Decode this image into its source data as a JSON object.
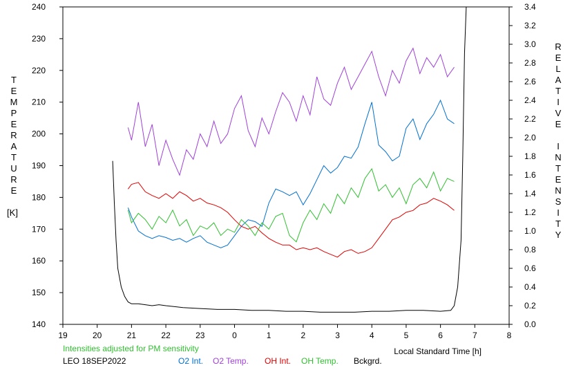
{
  "chart_data": {
    "type": "line",
    "xlabel": "Local Standard Time [h]",
    "ylabel": "TEMPERATURE",
    "ylabel_unit": "[K]",
    "y2label": "RELATIVE INTENSITY",
    "xlim": [
      19,
      32
    ],
    "ylim": [
      140,
      240
    ],
    "y2lim": [
      0.0,
      3.4
    ],
    "x_ticks": [
      19,
      20,
      21,
      22,
      23,
      24,
      25,
      26,
      27,
      28,
      29,
      30,
      31,
      32
    ],
    "x_tick_labels": [
      "19",
      "20",
      "21",
      "22",
      "23",
      "0",
      "1",
      "2",
      "3",
      "4",
      "5",
      "6",
      "7",
      "8"
    ],
    "y_ticks": [
      140,
      150,
      160,
      170,
      180,
      190,
      200,
      210,
      220,
      230,
      240
    ],
    "y_tick_labels": [
      "140",
      "150",
      "160",
      "170",
      "180",
      "190",
      "200",
      "210",
      "220",
      "230",
      "240"
    ],
    "y2_ticks": [
      0.0,
      0.2,
      0.4,
      0.6,
      0.8,
      1.0,
      1.2,
      1.4,
      1.6,
      1.8,
      2.0,
      2.2,
      2.4,
      2.6,
      2.8,
      3.0,
      3.2,
      3.4
    ],
    "y2_tick_labels": [
      "0.0",
      "0.2",
      "0.4",
      "0.6",
      "0.8",
      "1.0",
      "1.2",
      "1.4",
      "1.6",
      "1.8",
      "2.0",
      "2.2",
      "2.4",
      "2.6",
      "2.8",
      "3.0",
      "3.2",
      "3.4"
    ],
    "grid": false,
    "annotation": "Intensities adjusted for PM sensitivity",
    "station_date": "LEO 18SEP2022",
    "series": [
      {
        "name": "O2 Int.",
        "axis": "right",
        "color": "#0070d0",
        "x": [
          20.9,
          21.0,
          21.2,
          21.4,
          21.6,
          21.8,
          22.0,
          22.2,
          22.4,
          22.6,
          22.8,
          23.0,
          23.2,
          23.4,
          23.6,
          23.8,
          24.0,
          24.2,
          24.4,
          24.6,
          24.8,
          25.0,
          25.2,
          25.4,
          25.6,
          25.8,
          26.0,
          26.2,
          26.4,
          26.6,
          26.8,
          27.0,
          27.2,
          27.4,
          27.6,
          27.8,
          28.0,
          28.2,
          28.4,
          28.6,
          28.8,
          29.0,
          29.2,
          29.4,
          29.6,
          29.8,
          30.0,
          30.2,
          30.4
        ],
        "values": [
          1.25,
          1.15,
          1.0,
          0.95,
          0.92,
          0.95,
          0.93,
          0.9,
          0.92,
          0.88,
          0.92,
          0.95,
          0.88,
          0.85,
          0.82,
          0.85,
          0.95,
          1.05,
          1.12,
          1.1,
          1.05,
          1.3,
          1.45,
          1.42,
          1.38,
          1.42,
          1.28,
          1.4,
          1.55,
          1.7,
          1.62,
          1.68,
          1.8,
          1.78,
          1.9,
          2.15,
          2.38,
          1.92,
          1.85,
          1.75,
          1.8,
          2.1,
          2.2,
          1.98,
          2.15,
          2.25,
          2.4,
          2.2,
          2.15
        ]
      },
      {
        "name": "O2 Temp.",
        "axis": "left",
        "color": "#a040d8",
        "x": [
          20.9,
          21.0,
          21.2,
          21.4,
          21.6,
          21.8,
          22.0,
          22.2,
          22.4,
          22.6,
          22.8,
          23.0,
          23.2,
          23.4,
          23.6,
          23.8,
          24.0,
          24.2,
          24.4,
          24.6,
          24.8,
          25.0,
          25.2,
          25.4,
          25.6,
          25.8,
          26.0,
          26.2,
          26.4,
          26.6,
          26.8,
          27.0,
          27.2,
          27.4,
          27.6,
          27.8,
          28.0,
          28.2,
          28.4,
          28.6,
          28.8,
          29.0,
          29.2,
          29.4,
          29.6,
          29.8,
          30.0,
          30.2,
          30.4
        ],
        "values": [
          202,
          198,
          210,
          196,
          203,
          190,
          198,
          192,
          187,
          195,
          192,
          200,
          196,
          204,
          197,
          200,
          208,
          212,
          201,
          196,
          205,
          200,
          207,
          213,
          210,
          204,
          212,
          206,
          218,
          211,
          209,
          216,
          221,
          214,
          218,
          222,
          226,
          218,
          212,
          220,
          216,
          223,
          227,
          219,
          224,
          221,
          225,
          218,
          221
        ]
      },
      {
        "name": "OH Int.",
        "axis": "right",
        "color": "#e00000",
        "x": [
          20.9,
          21.0,
          21.2,
          21.4,
          21.6,
          21.8,
          22.0,
          22.2,
          22.4,
          22.6,
          22.8,
          23.0,
          23.2,
          23.4,
          23.6,
          23.8,
          24.0,
          24.2,
          24.4,
          24.6,
          24.8,
          25.0,
          25.2,
          25.4,
          25.6,
          25.8,
          26.0,
          26.2,
          26.4,
          26.6,
          26.8,
          27.0,
          27.2,
          27.4,
          27.6,
          27.8,
          28.0,
          28.2,
          28.4,
          28.6,
          28.8,
          29.0,
          29.2,
          29.4,
          29.6,
          29.8,
          30.0,
          30.2,
          30.4
        ],
        "values": [
          1.45,
          1.5,
          1.52,
          1.42,
          1.38,
          1.35,
          1.4,
          1.35,
          1.42,
          1.38,
          1.32,
          1.35,
          1.3,
          1.28,
          1.25,
          1.2,
          1.12,
          1.05,
          1.02,
          1.05,
          0.98,
          0.92,
          0.88,
          0.85,
          0.85,
          0.8,
          0.82,
          0.8,
          0.82,
          0.78,
          0.75,
          0.72,
          0.78,
          0.8,
          0.76,
          0.78,
          0.82,
          0.92,
          1.02,
          1.12,
          1.15,
          1.2,
          1.22,
          1.28,
          1.3,
          1.35,
          1.32,
          1.28,
          1.22
        ]
      },
      {
        "name": "OH Temp.",
        "axis": "left",
        "color": "#30c030",
        "x": [
          20.9,
          21.0,
          21.2,
          21.4,
          21.6,
          21.8,
          22.0,
          22.2,
          22.4,
          22.6,
          22.8,
          23.0,
          23.2,
          23.4,
          23.6,
          23.8,
          24.0,
          24.2,
          24.4,
          24.6,
          24.8,
          25.0,
          25.2,
          25.4,
          25.6,
          25.8,
          26.0,
          26.2,
          26.4,
          26.6,
          26.8,
          27.0,
          27.2,
          27.4,
          27.6,
          27.8,
          28.0,
          28.2,
          28.4,
          28.6,
          28.8,
          29.0,
          29.2,
          29.4,
          29.6,
          29.8,
          30.0,
          30.2,
          30.4
        ],
        "values": [
          176,
          172,
          175,
          173,
          170,
          174,
          172,
          176,
          171,
          173,
          168,
          171,
          170,
          172,
          168,
          170,
          169,
          173,
          171,
          168,
          172,
          170,
          174,
          175,
          168,
          166,
          172,
          176,
          173,
          178,
          175,
          181,
          178,
          183,
          180,
          186,
          189,
          182,
          184,
          180,
          183,
          178,
          184,
          186,
          183,
          188,
          182,
          186,
          185
        ]
      },
      {
        "name": "Bckgrd.",
        "axis": "right",
        "color": "#000000",
        "x": [
          20.45,
          20.5,
          20.55,
          20.6,
          20.7,
          20.8,
          20.9,
          21.0,
          21.2,
          21.4,
          21.6,
          21.8,
          22.0,
          22.5,
          23.0,
          23.5,
          24.0,
          24.5,
          25.0,
          25.5,
          26.0,
          26.5,
          27.0,
          27.5,
          28.0,
          28.5,
          29.0,
          29.5,
          30.0,
          30.3,
          30.4,
          30.5,
          30.6,
          30.65,
          30.7,
          30.75
        ],
        "values": [
          1.75,
          1.3,
          0.9,
          0.6,
          0.4,
          0.3,
          0.24,
          0.22,
          0.22,
          0.21,
          0.2,
          0.21,
          0.2,
          0.18,
          0.17,
          0.16,
          0.16,
          0.15,
          0.15,
          0.14,
          0.14,
          0.13,
          0.13,
          0.13,
          0.14,
          0.14,
          0.15,
          0.15,
          0.14,
          0.15,
          0.2,
          0.4,
          0.9,
          1.8,
          2.9,
          3.4
        ]
      }
    ]
  }
}
